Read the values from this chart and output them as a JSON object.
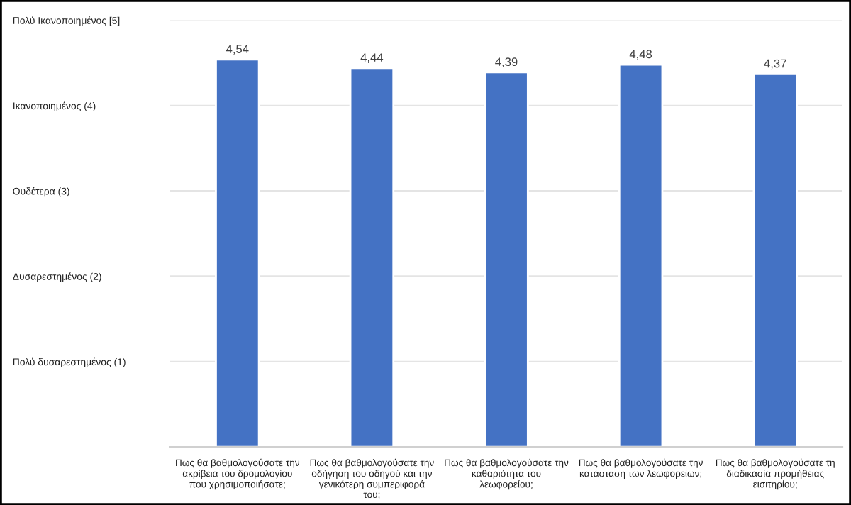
{
  "chart_data": {
    "type": "bar",
    "categories": [
      "Πως θα βαθμολογούσατε την ακρίβεια του δρομολογίου που χρησιμοποιήσατε;",
      "Πως θα βαθμολογούσατε την οδήγηση του οδηγού και την γενικότερη συμπεριφορά του;",
      "Πως θα βαθμολογούσατε την καθαριότητα του λεωφορείου;",
      "Πως θα βαθμολογούσατε την κατάσταση των λεωφορείων;",
      "Πως θα βαθμολογούσατε τη διαδικασία προμήθειας εισιτηρίου;"
    ],
    "values": [
      4.54,
      4.44,
      4.39,
      4.48,
      4.37
    ],
    "value_labels": [
      "4,54",
      "4,44",
      "4,39",
      "4,48",
      "4,37"
    ],
    "color": "#4472c4",
    "ylim": [
      0,
      5
    ],
    "yticks": [
      {
        "value": 1,
        "label": "Πολύ δυσαρεστημένος (1)"
      },
      {
        "value": 2,
        "label": "Δυσαρεστημένος (2)"
      },
      {
        "value": 3,
        "label": "Ουδέτερα (3)"
      },
      {
        "value": 4,
        "label": "Ικανοποιημένος (4)"
      },
      {
        "value": 5,
        "label": "Πολύ Ικανοποιημένος [5]"
      }
    ],
    "grid": "y"
  }
}
